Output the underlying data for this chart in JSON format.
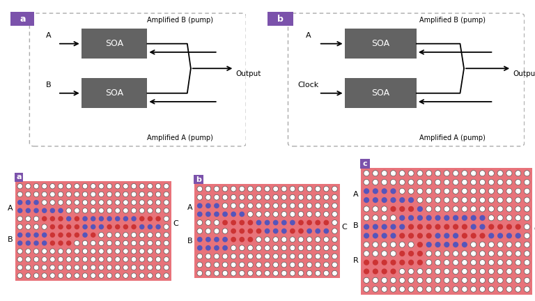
{
  "bg_color": "#ffffff",
  "purple_label_color": "#7b52ab",
  "soa_color": "#636363",
  "soa_text_color": "#ffffff",
  "dashed_box_color": "#aaaaaa",
  "panel_a_label": "a",
  "panel_b_label": "b",
  "panel_a_inputs": [
    "A",
    "B"
  ],
  "panel_b_inputs": [
    "A",
    "Clock"
  ],
  "panel_output": "Output",
  "panel_pump_top": "Amplified B (pump)",
  "panel_pump_bottom": "Amplified A (pump)",
  "bottom_a_label": "a",
  "bottom_b_label": "b",
  "bottom_c_label": "c",
  "photonic_bg": "#e8737a",
  "photonic_dot_empty": "#ffffff",
  "photonic_dot_blue": "#5555bb",
  "photonic_dot_red": "#cc3333",
  "photonic_dot_outline": "#555555"
}
